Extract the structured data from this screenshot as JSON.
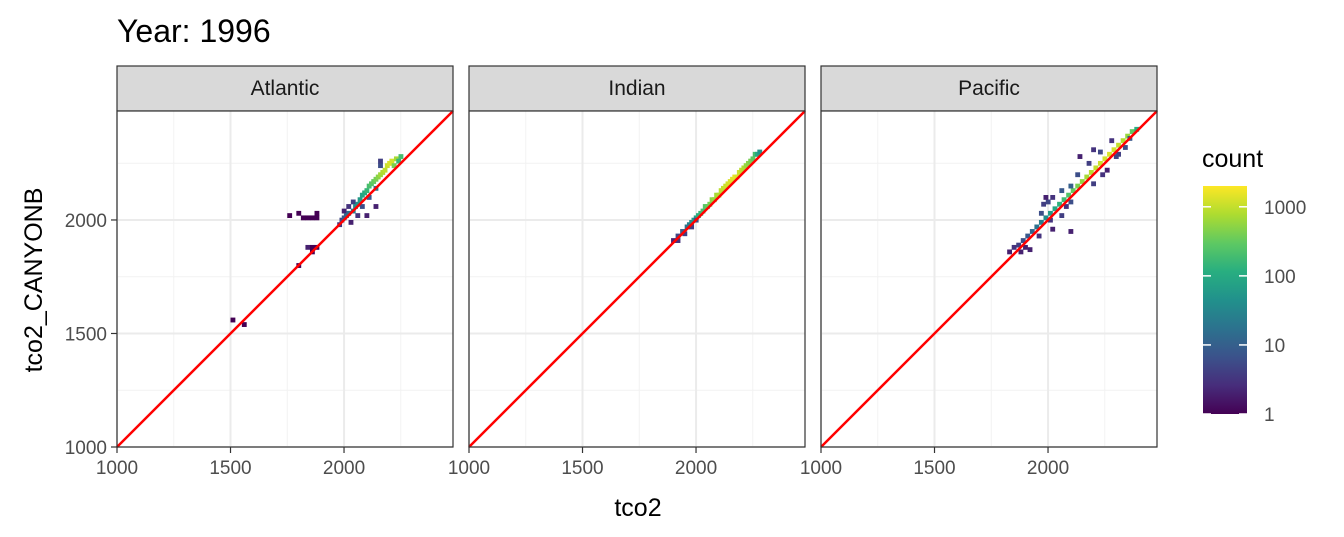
{
  "chart_data": {
    "type": "heatmap",
    "title": "Year: 1996",
    "xlabel": "tco2",
    "ylabel": "tco2_CANYONB",
    "xlim": [
      1000,
      2480
    ],
    "ylim": [
      1000,
      2480
    ],
    "x_ticks": [
      1000,
      1500,
      2000
    ],
    "y_ticks": [
      1000,
      1500,
      2000
    ],
    "grid": true,
    "reference_line": {
      "slope": 1,
      "intercept": 0,
      "color": "#ff0000"
    },
    "bin_width": 20,
    "legend": {
      "title": "count",
      "scale": "log10",
      "range": [
        1,
        2000
      ],
      "ticks": [
        1,
        10,
        100,
        1000
      ],
      "tick_labels": [
        "1",
        "10",
        "100",
        "1000"
      ],
      "colormap": "viridis",
      "placement": "right"
    },
    "facets": [
      {
        "name": "Atlantic",
        "bins": [
          [
            1510,
            1560,
            1
          ],
          [
            1560,
            1540,
            1
          ],
          [
            1760,
            2020,
            1
          ],
          [
            1800,
            1800,
            1
          ],
          [
            1800,
            2030,
            1
          ],
          [
            1820,
            2010,
            1
          ],
          [
            1840,
            2010,
            1
          ],
          [
            1840,
            1880,
            2
          ],
          [
            1860,
            1880,
            1
          ],
          [
            1860,
            1860,
            1
          ],
          [
            1860,
            2010,
            1
          ],
          [
            1880,
            2010,
            1
          ],
          [
            1880,
            2030,
            1
          ],
          [
            1880,
            1880,
            1
          ],
          [
            1980,
            1980,
            3
          ],
          [
            1990,
            2000,
            5
          ],
          [
            2000,
            2010,
            8
          ],
          [
            2000,
            2040,
            2
          ],
          [
            2010,
            2020,
            12
          ],
          [
            2020,
            2030,
            15
          ],
          [
            2020,
            2060,
            3
          ],
          [
            2030,
            1990,
            2
          ],
          [
            2040,
            2040,
            25
          ],
          [
            2040,
            2080,
            4
          ],
          [
            2050,
            2060,
            35
          ],
          [
            2060,
            2020,
            3
          ],
          [
            2060,
            2070,
            50
          ],
          [
            2070,
            2090,
            60
          ],
          [
            2080,
            2110,
            80
          ],
          [
            2080,
            2060,
            6
          ],
          [
            2090,
            2120,
            100
          ],
          [
            2100,
            2130,
            150
          ],
          [
            2110,
            2100,
            8
          ],
          [
            2110,
            2150,
            200
          ],
          [
            2120,
            2160,
            260
          ],
          [
            2130,
            2170,
            320
          ],
          [
            2140,
            2140,
            20
          ],
          [
            2140,
            2180,
            400
          ],
          [
            2150,
            2190,
            500
          ],
          [
            2160,
            2200,
            650
          ],
          [
            2170,
            2210,
            800
          ],
          [
            2180,
            2220,
            950
          ],
          [
            2190,
            2240,
            1100
          ],
          [
            2200,
            2250,
            1300
          ],
          [
            2210,
            2260,
            1200
          ],
          [
            2220,
            2240,
            400
          ],
          [
            2230,
            2270,
            700
          ],
          [
            2240,
            2260,
            150
          ],
          [
            2250,
            2280,
            200
          ],
          [
            2140,
            2060,
            2
          ],
          [
            2160,
            2240,
            6
          ],
          [
            2160,
            2260,
            4
          ],
          [
            2100,
            2020,
            2
          ]
        ]
      },
      {
        "name": "Indian",
        "bins": [
          [
            1900,
            1910,
            2
          ],
          [
            1920,
            1910,
            3
          ],
          [
            1920,
            1930,
            5
          ],
          [
            1940,
            1950,
            10
          ],
          [
            1950,
            1940,
            4
          ],
          [
            1960,
            1970,
            18
          ],
          [
            1970,
            1980,
            25
          ],
          [
            1980,
            1990,
            40
          ],
          [
            1990,
            2000,
            55
          ],
          [
            2000,
            2010,
            80
          ],
          [
            2010,
            2020,
            110
          ],
          [
            2020,
            2030,
            150
          ],
          [
            2030,
            2040,
            200
          ],
          [
            2040,
            2060,
            260
          ],
          [
            2050,
            2060,
            320
          ],
          [
            2060,
            2070,
            400
          ],
          [
            2070,
            2090,
            500
          ],
          [
            2080,
            2090,
            600
          ],
          [
            2090,
            2110,
            700
          ],
          [
            2100,
            2110,
            800
          ],
          [
            2110,
            2130,
            900
          ],
          [
            2120,
            2140,
            1000
          ],
          [
            2130,
            2150,
            1100
          ],
          [
            2140,
            2160,
            1200
          ],
          [
            2150,
            2170,
            1300
          ],
          [
            2160,
            2180,
            1400
          ],
          [
            2170,
            2190,
            1500
          ],
          [
            2180,
            2190,
            1300
          ],
          [
            2190,
            2210,
            1100
          ],
          [
            2200,
            2220,
            900
          ],
          [
            2210,
            2230,
            800
          ],
          [
            2220,
            2240,
            600
          ],
          [
            2230,
            2250,
            500
          ],
          [
            2240,
            2260,
            400
          ],
          [
            2250,
            2270,
            300
          ],
          [
            2260,
            2290,
            200
          ],
          [
            2270,
            2290,
            100
          ],
          [
            2280,
            2300,
            50
          ],
          [
            2000,
            2000,
            6
          ],
          [
            1980,
            1970,
            4
          ]
        ]
      },
      {
        "name": "Pacific",
        "bins": [
          [
            1830,
            1860,
            2
          ],
          [
            1850,
            1880,
            3
          ],
          [
            1870,
            1890,
            4
          ],
          [
            1890,
            1910,
            6
          ],
          [
            1910,
            1930,
            8
          ],
          [
            1930,
            1950,
            12
          ],
          [
            1950,
            1970,
            18
          ],
          [
            1970,
            1990,
            25
          ],
          [
            1990,
            2010,
            40
          ],
          [
            2010,
            2030,
            60
          ],
          [
            2030,
            2050,
            90
          ],
          [
            2050,
            2070,
            130
          ],
          [
            2070,
            2090,
            180
          ],
          [
            2090,
            2110,
            240
          ],
          [
            2110,
            2130,
            320
          ],
          [
            2130,
            2150,
            420
          ],
          [
            2150,
            2170,
            550
          ],
          [
            2170,
            2190,
            700
          ],
          [
            2190,
            2210,
            850
          ],
          [
            2210,
            2230,
            1000
          ],
          [
            2230,
            2250,
            1100
          ],
          [
            2250,
            2270,
            1200
          ],
          [
            2270,
            2290,
            1300
          ],
          [
            2290,
            2310,
            1200
          ],
          [
            2310,
            2330,
            1000
          ],
          [
            2330,
            2350,
            800
          ],
          [
            2350,
            2370,
            600
          ],
          [
            2370,
            2390,
            300
          ],
          [
            2390,
            2400,
            120
          ],
          [
            1970,
            2030,
            6
          ],
          [
            1980,
            2070,
            4
          ],
          [
            2000,
            2080,
            5
          ],
          [
            2020,
            2100,
            3
          ],
          [
            1990,
            2100,
            2
          ],
          [
            2060,
            2130,
            8
          ],
          [
            2100,
            2150,
            10
          ],
          [
            2130,
            2200,
            6
          ],
          [
            2180,
            2250,
            4
          ],
          [
            2200,
            2310,
            3
          ],
          [
            2140,
            2280,
            2
          ],
          [
            2230,
            2300,
            5
          ],
          [
            2280,
            2350,
            3
          ],
          [
            2310,
            2290,
            4
          ],
          [
            2340,
            2320,
            6
          ],
          [
            2360,
            2360,
            8
          ],
          [
            2060,
            2020,
            4
          ],
          [
            2100,
            2080,
            6
          ],
          [
            2080,
            2060,
            3
          ],
          [
            2100,
            1950,
            2
          ],
          [
            1920,
            1870,
            2
          ],
          [
            1960,
            1930,
            3
          ],
          [
            1880,
            1860,
            2
          ],
          [
            2200,
            2160,
            4
          ],
          [
            2240,
            2200,
            3
          ],
          [
            2260,
            2220,
            2
          ],
          [
            2300,
            2280,
            5
          ],
          [
            2020,
            1960,
            2
          ],
          [
            2010,
            2000,
            3
          ],
          [
            1900,
            1880,
            2
          ]
        ]
      }
    ]
  }
}
